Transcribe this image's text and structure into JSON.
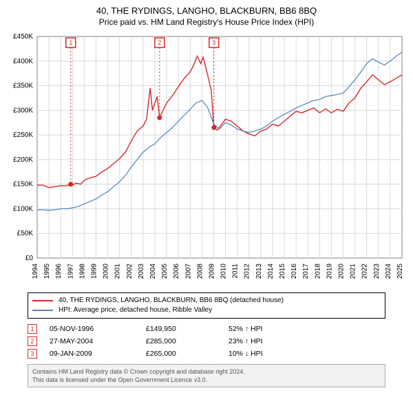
{
  "title": "40, THE RYDINGS, LANGHO, BLACKBURN, BB6 8BQ",
  "subtitle": "Price paid vs. HM Land Registry's House Price Index (HPI)",
  "chart": {
    "type": "line",
    "background_color": "#ffffff",
    "grid_color": "#d9d9d9",
    "border_color": "#808080",
    "xlim": [
      1994,
      2025
    ],
    "x_ticks": [
      1994,
      1995,
      1996,
      1997,
      1998,
      1999,
      2000,
      2001,
      2002,
      2003,
      2004,
      2005,
      2006,
      2007,
      2008,
      2009,
      2010,
      2011,
      2012,
      2013,
      2014,
      2015,
      2016,
      2017,
      2018,
      2019,
      2020,
      2021,
      2022,
      2023,
      2024,
      2025
    ],
    "ylim": [
      0,
      450000
    ],
    "y_ticks": [
      0,
      50000,
      100000,
      150000,
      200000,
      250000,
      300000,
      350000,
      400000,
      450000
    ],
    "y_tick_labels": [
      "£0",
      "£50K",
      "£100K",
      "£150K",
      "£200K",
      "£250K",
      "£300K",
      "£350K",
      "£400K",
      "£450K"
    ],
    "tick_fontsize": 10,
    "marker_line_color": "#d62728",
    "marker_line_dash": "2,3",
    "series": [
      {
        "name": "property",
        "color": "#d62728",
        "line_width": 1.4,
        "points": [
          [
            1994.0,
            148000
          ],
          [
            1994.5,
            148000
          ],
          [
            1995.0,
            143000
          ],
          [
            1995.5,
            145000
          ],
          [
            1996.0,
            147000
          ],
          [
            1996.5,
            147000
          ],
          [
            1996.85,
            149950
          ],
          [
            1997.0,
            148000
          ],
          [
            1997.3,
            152000
          ],
          [
            1997.7,
            150000
          ],
          [
            1998.0,
            158000
          ],
          [
            1998.5,
            163000
          ],
          [
            1999.0,
            166000
          ],
          [
            1999.5,
            175000
          ],
          [
            2000.0,
            182000
          ],
          [
            2000.5,
            192000
          ],
          [
            2001.0,
            202000
          ],
          [
            2001.5,
            215000
          ],
          [
            2002.0,
            238000
          ],
          [
            2002.5,
            258000
          ],
          [
            2003.0,
            268000
          ],
          [
            2003.3,
            282000
          ],
          [
            2003.6,
            345000
          ],
          [
            2003.8,
            300000
          ],
          [
            2004.0,
            315000
          ],
          [
            2004.2,
            328000
          ],
          [
            2004.4,
            285000
          ],
          [
            2004.7,
            300000
          ],
          [
            2005.0,
            315000
          ],
          [
            2005.5,
            330000
          ],
          [
            2006.0,
            348000
          ],
          [
            2006.5,
            365000
          ],
          [
            2007.0,
            378000
          ],
          [
            2007.3,
            392000
          ],
          [
            2007.6,
            410000
          ],
          [
            2007.9,
            395000
          ],
          [
            2008.1,
            408000
          ],
          [
            2008.3,
            390000
          ],
          [
            2008.5,
            370000
          ],
          [
            2008.8,
            340000
          ],
          [
            2009.0,
            265000
          ],
          [
            2009.3,
            260000
          ],
          [
            2009.7,
            272000
          ],
          [
            2010.0,
            282000
          ],
          [
            2010.5,
            278000
          ],
          [
            2011.0,
            268000
          ],
          [
            2011.5,
            258000
          ],
          [
            2012.0,
            252000
          ],
          [
            2012.5,
            248000
          ],
          [
            2013.0,
            258000
          ],
          [
            2013.5,
            262000
          ],
          [
            2014.0,
            272000
          ],
          [
            2014.5,
            268000
          ],
          [
            2015.0,
            278000
          ],
          [
            2015.5,
            288000
          ],
          [
            2016.0,
            298000
          ],
          [
            2016.5,
            295000
          ],
          [
            2017.0,
            300000
          ],
          [
            2017.5,
            305000
          ],
          [
            2018.0,
            295000
          ],
          [
            2018.5,
            303000
          ],
          [
            2019.0,
            295000
          ],
          [
            2019.5,
            302000
          ],
          [
            2020.0,
            298000
          ],
          [
            2020.5,
            315000
          ],
          [
            2021.0,
            325000
          ],
          [
            2021.5,
            345000
          ],
          [
            2022.0,
            358000
          ],
          [
            2022.5,
            372000
          ],
          [
            2023.0,
            362000
          ],
          [
            2023.5,
            352000
          ],
          [
            2024.0,
            358000
          ],
          [
            2024.5,
            365000
          ],
          [
            2025.0,
            372000
          ]
        ]
      },
      {
        "name": "hpi",
        "color": "#4f81bd",
        "line_width": 1.2,
        "points": [
          [
            1994.0,
            98000
          ],
          [
            1994.5,
            98000
          ],
          [
            1995.0,
            97000
          ],
          [
            1995.5,
            98000
          ],
          [
            1996.0,
            100000
          ],
          [
            1996.5,
            100000
          ],
          [
            1997.0,
            102000
          ],
          [
            1997.5,
            105000
          ],
          [
            1998.0,
            110000
          ],
          [
            1998.5,
            115000
          ],
          [
            1999.0,
            120000
          ],
          [
            1999.5,
            128000
          ],
          [
            2000.0,
            135000
          ],
          [
            2000.5,
            145000
          ],
          [
            2001.0,
            155000
          ],
          [
            2001.5,
            168000
          ],
          [
            2002.0,
            185000
          ],
          [
            2002.5,
            200000
          ],
          [
            2003.0,
            215000
          ],
          [
            2003.5,
            225000
          ],
          [
            2004.0,
            232000
          ],
          [
            2004.5,
            245000
          ],
          [
            2005.0,
            255000
          ],
          [
            2005.5,
            265000
          ],
          [
            2006.0,
            278000
          ],
          [
            2006.5,
            290000
          ],
          [
            2007.0,
            302000
          ],
          [
            2007.5,
            315000
          ],
          [
            2008.0,
            320000
          ],
          [
            2008.5,
            305000
          ],
          [
            2009.0,
            272000
          ],
          [
            2009.5,
            262000
          ],
          [
            2010.0,
            275000
          ],
          [
            2010.5,
            270000
          ],
          [
            2011.0,
            262000
          ],
          [
            2011.5,
            258000
          ],
          [
            2012.0,
            255000
          ],
          [
            2012.5,
            258000
          ],
          [
            2013.0,
            262000
          ],
          [
            2013.5,
            268000
          ],
          [
            2014.0,
            278000
          ],
          [
            2014.5,
            285000
          ],
          [
            2015.0,
            292000
          ],
          [
            2015.5,
            298000
          ],
          [
            2016.0,
            305000
          ],
          [
            2016.5,
            310000
          ],
          [
            2017.0,
            315000
          ],
          [
            2017.5,
            320000
          ],
          [
            2018.0,
            322000
          ],
          [
            2018.5,
            328000
          ],
          [
            2019.0,
            330000
          ],
          [
            2019.5,
            332000
          ],
          [
            2020.0,
            335000
          ],
          [
            2020.5,
            348000
          ],
          [
            2021.0,
            362000
          ],
          [
            2021.5,
            378000
          ],
          [
            2022.0,
            395000
          ],
          [
            2022.5,
            405000
          ],
          [
            2023.0,
            398000
          ],
          [
            2023.5,
            392000
          ],
          [
            2024.0,
            400000
          ],
          [
            2024.5,
            410000
          ],
          [
            2025.0,
            418000
          ]
        ]
      }
    ],
    "sale_markers": [
      {
        "num": "1",
        "x": 1996.85,
        "y": 149950
      },
      {
        "num": "2",
        "x": 2004.4,
        "y": 285000
      },
      {
        "num": "3",
        "x": 2009.02,
        "y": 265000
      }
    ]
  },
  "legend": {
    "items": [
      {
        "color": "#d62728",
        "label": "40, THE RYDINGS, LANGHO, BLACKBURN, BB6 8BQ (detached house)"
      },
      {
        "color": "#4f81bd",
        "label": "HPI: Average price, detached house, Ribble Valley"
      }
    ]
  },
  "sales": [
    {
      "num": "1",
      "date": "05-NOV-1996",
      "price": "£149,950",
      "vs_hpi": "52% ↑ HPI"
    },
    {
      "num": "2",
      "date": "27-MAY-2004",
      "price": "£285,000",
      "vs_hpi": "23% ↑ HPI"
    },
    {
      "num": "3",
      "date": "09-JAN-2009",
      "price": "£265,000",
      "vs_hpi": "10% ↓ HPI"
    }
  ],
  "footer": {
    "line1": "Contains HM Land Registry data © Crown copyright and database right 2024.",
    "line2": "This data is licensed under the Open Government Licence v3.0."
  }
}
